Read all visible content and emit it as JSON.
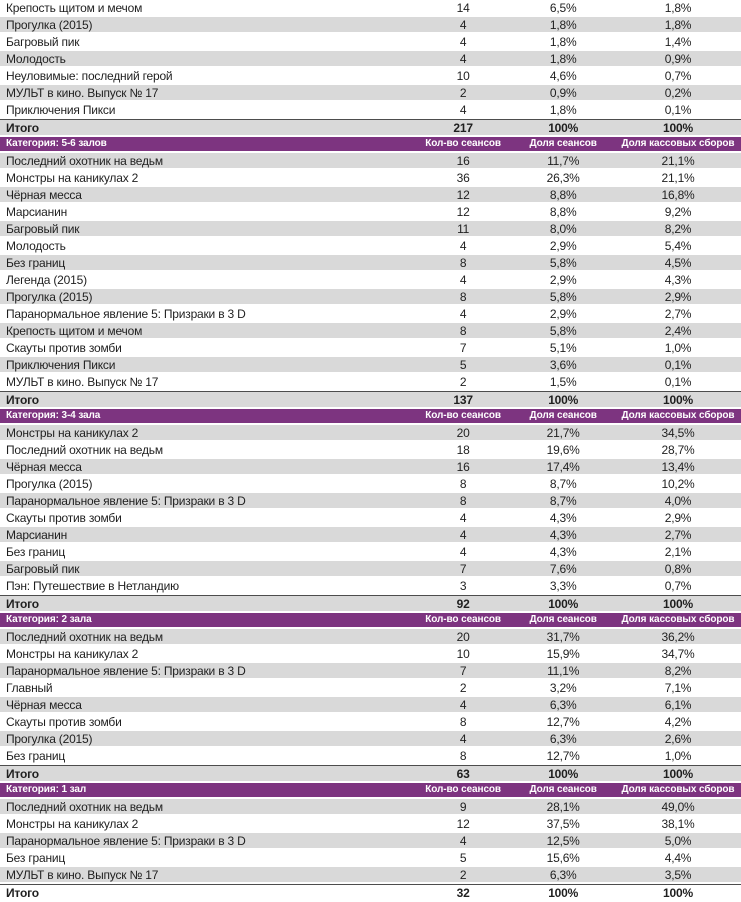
{
  "colors": {
    "category_header_bg": "#7d3480",
    "category_header_text": "#ffffff",
    "stripe_row_bg": "#d9d9d9",
    "plain_row_bg": "#ffffff",
    "body_text": "#1f1f1f",
    "total_row_top_border": "#4d4d4d"
  },
  "table": {
    "columns": [
      "Кол-во сеансов",
      "Доля сеансов",
      "Доля кассовых сборов"
    ],
    "total_label": "Итого",
    "sections": [
      {
        "category": null,
        "rows": [
          [
            "Крепость щитом и мечом",
            "14",
            "6,5%",
            "1,8%"
          ],
          [
            "Прогулка (2015)",
            "4",
            "1,8%",
            "1,8%"
          ],
          [
            "Багровый пик",
            "4",
            "1,8%",
            "1,4%"
          ],
          [
            "Молодость",
            "4",
            "1,8%",
            "0,9%"
          ],
          [
            "Неуловимые: последний герой",
            "10",
            "4,6%",
            "0,7%"
          ],
          [
            "МУЛЬТ в кино. Выпуск № 17",
            "2",
            "0,9%",
            "0,2%"
          ],
          [
            "Приключения Пикси",
            "4",
            "1,8%",
            "0,1%"
          ]
        ],
        "total": [
          "Итого",
          "217",
          "100%",
          "100%"
        ]
      },
      {
        "category": "Категория: 5-6 залов",
        "rows": [
          [
            "Последний охотник на ведьм",
            "16",
            "11,7%",
            "21,1%"
          ],
          [
            "Монстры на каникулах 2",
            "36",
            "26,3%",
            "21,1%"
          ],
          [
            "Чёрная месса",
            "12",
            "8,8%",
            "16,8%"
          ],
          [
            "Марсианин",
            "12",
            "8,8%",
            "9,2%"
          ],
          [
            "Багровый пик",
            "11",
            "8,0%",
            "8,2%"
          ],
          [
            "Молодость",
            "4",
            "2,9%",
            "5,4%"
          ],
          [
            "Без границ",
            "8",
            "5,8%",
            "4,5%"
          ],
          [
            "Легенда (2015)",
            "4",
            "2,9%",
            "4,3%"
          ],
          [
            "Прогулка (2015)",
            "8",
            "5,8%",
            "2,9%"
          ],
          [
            "Паранормальное явление 5: Призраки в 3 D",
            "4",
            "2,9%",
            "2,7%"
          ],
          [
            "Крепость щитом и мечом",
            "8",
            "5,8%",
            "2,4%"
          ],
          [
            "Скауты против зомби",
            "7",
            "5,1%",
            "1,0%"
          ],
          [
            "Приключения Пикси",
            "5",
            "3,6%",
            "0,1%"
          ],
          [
            "МУЛЬТ в кино. Выпуск № 17",
            "2",
            "1,5%",
            "0,1%"
          ]
        ],
        "total": [
          "Итого",
          "137",
          "100%",
          "100%"
        ]
      },
      {
        "category": "Категория: 3-4 зала",
        "rows": [
          [
            "Монстры на каникулах 2",
            "20",
            "21,7%",
            "34,5%"
          ],
          [
            "Последний охотник на ведьм",
            "18",
            "19,6%",
            "28,7%"
          ],
          [
            "Чёрная месса",
            "16",
            "17,4%",
            "13,4%"
          ],
          [
            "Прогулка (2015)",
            "8",
            "8,7%",
            "10,2%"
          ],
          [
            "Паранормальное явление 5: Призраки в 3 D",
            "8",
            "8,7%",
            "4,0%"
          ],
          [
            "Скауты против зомби",
            "4",
            "4,3%",
            "2,9%"
          ],
          [
            "Марсианин",
            "4",
            "4,3%",
            "2,7%"
          ],
          [
            "Без границ",
            "4",
            "4,3%",
            "2,1%"
          ],
          [
            "Багровый пик",
            "7",
            "7,6%",
            "0,8%"
          ],
          [
            "Пэн: Путешествие в Нетландию",
            "3",
            "3,3%",
            "0,7%"
          ]
        ],
        "total": [
          "Итого",
          "92",
          "100%",
          "100%"
        ]
      },
      {
        "category": "Категория: 2 зала",
        "rows": [
          [
            "Последний охотник на ведьм",
            "20",
            "31,7%",
            "36,2%"
          ],
          [
            "Монстры на каникулах 2",
            "10",
            "15,9%",
            "34,7%"
          ],
          [
            "Паранормальное явление 5: Призраки в 3 D",
            "7",
            "11,1%",
            "8,2%"
          ],
          [
            "Главный",
            "2",
            "3,2%",
            "7,1%"
          ],
          [
            "Чёрная месса",
            "4",
            "6,3%",
            "6,1%"
          ],
          [
            "Скауты против зомби",
            "8",
            "12,7%",
            "4,2%"
          ],
          [
            "Прогулка (2015)",
            "4",
            "6,3%",
            "2,6%"
          ],
          [
            "Без границ",
            "8",
            "12,7%",
            "1,0%"
          ]
        ],
        "total": [
          "Итого",
          "63",
          "100%",
          "100%"
        ]
      },
      {
        "category": "Категория: 1 зал",
        "rows": [
          [
            "Последний охотник на ведьм",
            "9",
            "28,1%",
            "49,0%"
          ],
          [
            "Монстры на каникулах 2",
            "12",
            "37,5%",
            "38,1%"
          ],
          [
            "Паранормальное явление 5: Призраки в 3 D",
            "4",
            "12,5%",
            "5,0%"
          ],
          [
            "Без границ",
            "5",
            "15,6%",
            "4,4%"
          ],
          [
            "МУЛЬТ в кино. Выпуск № 17",
            "2",
            "6,3%",
            "3,5%"
          ]
        ],
        "total": [
          "Итого",
          "32",
          "100%",
          "100%"
        ]
      }
    ]
  }
}
